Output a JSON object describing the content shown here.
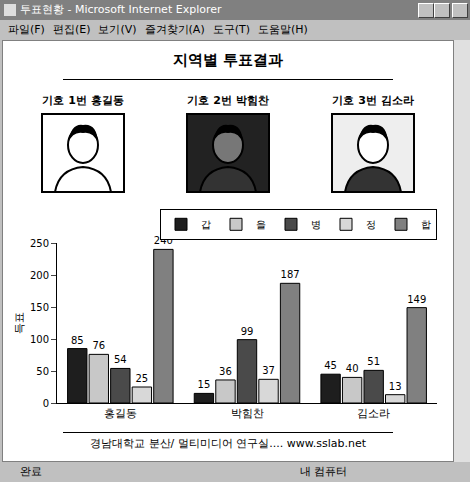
{
  "window": {
    "title": "투표현황 - Microsoft Internet Explorer",
    "menu": [
      "파일(F)",
      "편집(E)",
      "보기(V)",
      "즐겨찾기(A)",
      "도구(T)",
      "도움말(H)"
    ],
    "status": [
      "완료",
      "내 컴퓨터"
    ]
  },
  "header": {
    "title": "지역별 투표결과",
    "candidates": [
      "기호 1번 홍길동",
      "기호 2번 박힘찬",
      "기호 3번 김소라"
    ]
  },
  "footer": "경남대학교 분산/ 멀티미디어 연구실.... www.sslab.net",
  "chart_data": {
    "type": "bar",
    "y_label": "득표",
    "categories": [
      "홍길동",
      "박힘찬",
      "김소라"
    ],
    "series": [
      {
        "name": "갑",
        "color": "#1e1e1e",
        "values": [
          85,
          15,
          45
        ]
      },
      {
        "name": "을",
        "color": "#c8c8c8",
        "values": [
          76,
          36,
          40
        ]
      },
      {
        "name": "병",
        "color": "#4a4a4a",
        "values": [
          54,
          99,
          51
        ]
      },
      {
        "name": "정",
        "color": "#d8d8d8",
        "values": [
          25,
          37,
          13
        ]
      },
      {
        "name": "합",
        "color": "#808080",
        "values": [
          240,
          187,
          149
        ]
      }
    ],
    "ylim": [
      0,
      250
    ],
    "yticks": [
      0,
      50,
      100,
      150,
      200,
      250
    ],
    "grid": false,
    "legend": "top-right",
    "data_labels": true
  }
}
